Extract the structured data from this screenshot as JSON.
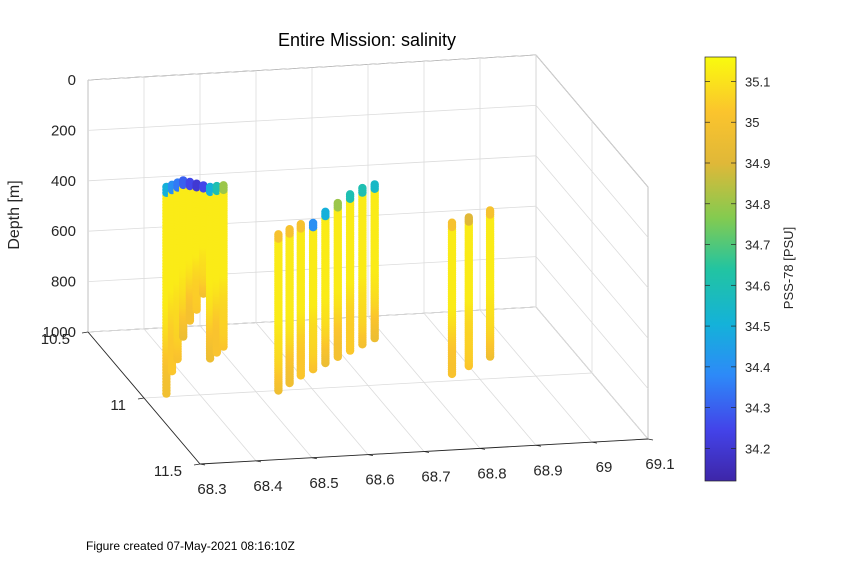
{
  "chart_data": {
    "type": "scatter",
    "title": "Entire Mission: salinity",
    "zlabel": "Depth [m]",
    "colorbar_label": "PSS-78 [PSU]",
    "x_ticks": [
      "68.3",
      "68.4",
      "68.5",
      "68.6",
      "68.7",
      "68.8",
      "68.9",
      "69",
      "69.1"
    ],
    "y_ticks": [
      "10.5",
      "11",
      "11.5"
    ],
    "z_ticks": [
      "0",
      "200",
      "400",
      "600",
      "800",
      "1000"
    ],
    "xlim": [
      68.3,
      69.1
    ],
    "ylim": [
      10.5,
      11.5
    ],
    "zlim": [
      0,
      1000
    ],
    "z_reversed": true,
    "grid": true,
    "colorbar_ticks": [
      "34.2",
      "34.3",
      "34.4",
      "34.5",
      "34.6",
      "34.7",
      "34.8",
      "34.9",
      "35",
      "35.1"
    ],
    "clim": [
      34.12,
      35.16
    ],
    "colormap": "parula",
    "profiles": [
      {
        "lon": 68.33,
        "lat": 11.05,
        "top_depth": 140,
        "bottom_depth": 960,
        "top_salinity": 34.5
      },
      {
        "lon": 68.35,
        "lat": 11.0,
        "top_depth": 160,
        "bottom_depth": 900,
        "top_salinity": 34.4
      },
      {
        "lon": 68.37,
        "lat": 10.95,
        "top_depth": 180,
        "bottom_depth": 880,
        "top_salinity": 34.35
      },
      {
        "lon": 68.39,
        "lat": 10.9,
        "top_depth": 200,
        "bottom_depth": 820,
        "top_salinity": 34.3
      },
      {
        "lon": 68.41,
        "lat": 10.86,
        "top_depth": 230,
        "bottom_depth": 780,
        "top_salinity": 34.25
      },
      {
        "lon": 68.43,
        "lat": 10.82,
        "top_depth": 260,
        "bottom_depth": 760,
        "top_salinity": 34.2
      },
      {
        "lon": 68.45,
        "lat": 10.78,
        "top_depth": 290,
        "bottom_depth": 720,
        "top_salinity": 34.25
      },
      {
        "lon": 68.47,
        "lat": 10.74,
        "top_depth": 320,
        "bottom_depth": 1000,
        "top_salinity": 34.5
      },
      {
        "lon": 68.49,
        "lat": 10.7,
        "top_depth": 340,
        "bottom_depth": 1000,
        "top_salinity": 34.6
      },
      {
        "lon": 68.51,
        "lat": 10.66,
        "top_depth": 360,
        "bottom_depth": 1000,
        "top_salinity": 34.8
      },
      {
        "lon": 68.54,
        "lat": 11.0,
        "top_depth": 380,
        "bottom_depth": 1000,
        "top_salinity": 35.0
      },
      {
        "lon": 68.57,
        "lat": 10.95,
        "top_depth": 390,
        "bottom_depth": 1000,
        "top_salinity": 35.0
      },
      {
        "lon": 68.6,
        "lat": 10.9,
        "top_depth": 400,
        "bottom_depth": 1000,
        "top_salinity": 35.0
      },
      {
        "lon": 68.63,
        "lat": 10.86,
        "top_depth": 420,
        "bottom_depth": 1000,
        "top_salinity": 34.4
      },
      {
        "lon": 68.66,
        "lat": 10.82,
        "top_depth": 400,
        "bottom_depth": 1000,
        "top_salinity": 34.5
      },
      {
        "lon": 68.69,
        "lat": 10.78,
        "top_depth": 390,
        "bottom_depth": 1000,
        "top_salinity": 34.8
      },
      {
        "lon": 68.72,
        "lat": 10.74,
        "top_depth": 380,
        "bottom_depth": 1000,
        "top_salinity": 34.6
      },
      {
        "lon": 68.75,
        "lat": 10.7,
        "top_depth": 380,
        "bottom_depth": 1000,
        "top_salinity": 34.6
      },
      {
        "lon": 68.78,
        "lat": 10.66,
        "top_depth": 390,
        "bottom_depth": 1000,
        "top_salinity": 34.55
      },
      {
        "lon": 68.86,
        "lat": 10.95,
        "top_depth": 400,
        "bottom_depth": 1000,
        "top_salinity": 35.0
      },
      {
        "lon": 68.9,
        "lat": 10.9,
        "top_depth": 410,
        "bottom_depth": 1000,
        "top_salinity": 34.9
      },
      {
        "lon": 68.95,
        "lat": 10.84,
        "top_depth": 420,
        "bottom_depth": 1000,
        "top_salinity": 35.0
      }
    ]
  },
  "footer": {
    "text": "Figure created 07-May-2021 08:16:10Z"
  }
}
